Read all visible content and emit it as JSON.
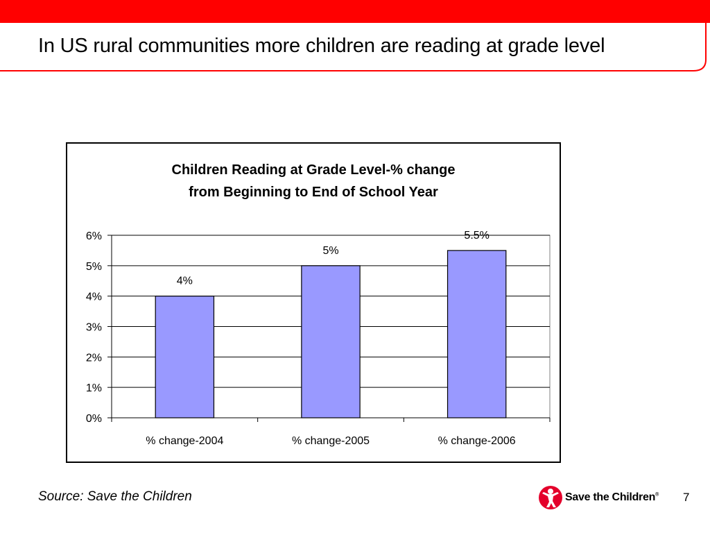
{
  "slide": {
    "title": "In US rural communities more children are reading at grade level",
    "source": "Source: Save the Children",
    "page_number": "7",
    "brand": {
      "name": "Save the Children",
      "accent_color": "#ff0000"
    }
  },
  "chart_data": {
    "type": "bar",
    "title_lines": [
      "Children Reading at Grade Level-% change",
      "from Beginning to End of School Year"
    ],
    "categories": [
      "% change-2004",
      "% change-2005",
      "% change-2006"
    ],
    "values": [
      4,
      5,
      5.5
    ],
    "data_labels": [
      "4%",
      "5%",
      "5.5%"
    ],
    "ylim": [
      0,
      6
    ],
    "yticks": [
      0,
      1,
      2,
      3,
      4,
      5,
      6
    ],
    "ytick_labels": [
      "0%",
      "1%",
      "2%",
      "3%",
      "4%",
      "5%",
      "6%"
    ],
    "xlabel": "",
    "ylabel": "",
    "grid": true,
    "legend": "none",
    "colors": {
      "bar_fill": "#9999ff",
      "bar_stroke": "#000000",
      "grid": "#000000"
    }
  }
}
